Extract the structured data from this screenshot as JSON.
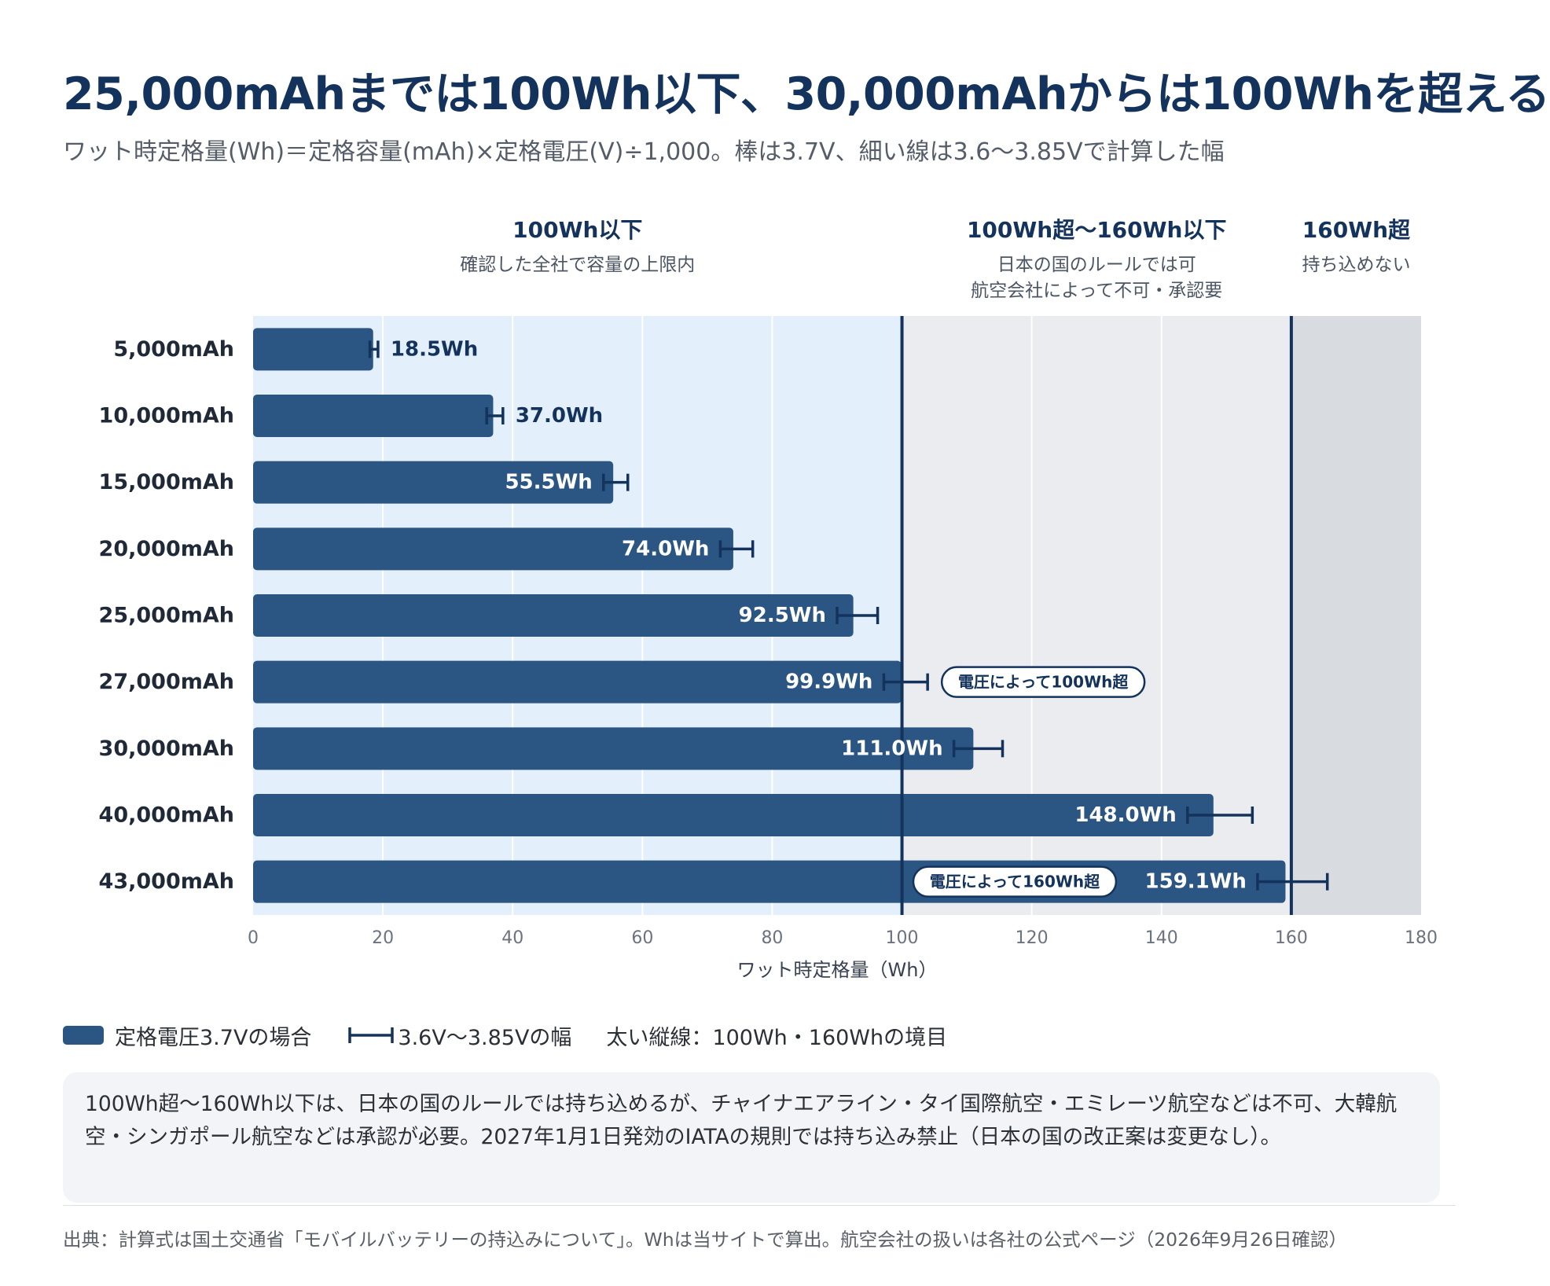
{
  "title": "25,000mAhまでは100Wh以下、30,000mAhからは100Whを超える",
  "subtitle": "ワット時定格量(Wh)＝定格容量(mAh)×定格電圧(V)÷1,000。棒は3.7V、細い線は3.6〜3.85Vで計算した幅",
  "chart_data": {
    "type": "bar",
    "orientation": "horizontal",
    "categories": [
      "5,000mAh",
      "10,000mAh",
      "15,000mAh",
      "20,000mAh",
      "25,000mAh",
      "27,000mAh",
      "30,000mAh",
      "40,000mAh",
      "43,000mAh"
    ],
    "values": [
      18.5,
      37.0,
      55.5,
      74.0,
      92.5,
      99.9,
      111.0,
      148.0,
      159.1
    ],
    "value_labels": [
      "18.5Wh",
      "37.0Wh",
      "55.5Wh",
      "74.0Wh",
      "92.5Wh",
      "99.9Wh",
      "111.0Wh",
      "148.0Wh",
      "159.1Wh"
    ],
    "error_ranges": [
      [
        18.0,
        19.25
      ],
      [
        36.0,
        38.5
      ],
      [
        54.0,
        57.75
      ],
      [
        72.0,
        77.0
      ],
      [
        90.0,
        96.25
      ],
      [
        97.2,
        103.95
      ],
      [
        108.0,
        115.5
      ],
      [
        144.0,
        154.0
      ],
      [
        154.8,
        165.55
      ]
    ],
    "xlabel": "ワット時定格量（Wh）",
    "ylabel": "",
    "xlim": [
      0,
      180
    ],
    "xticks": [
      0,
      20,
      40,
      60,
      80,
      100,
      120,
      140,
      160,
      180
    ],
    "grid": true,
    "thresholds": [
      100,
      160
    ],
    "zones": [
      {
        "range": [
          0,
          100
        ],
        "title": "100Wh以下",
        "subtitle_lines": [
          "確認した全社で容量の上限内"
        ],
        "color": "#e3effa"
      },
      {
        "range": [
          100,
          160
        ],
        "title": "100Wh超〜160Wh以下",
        "subtitle_lines": [
          "日本の国のルールでは可",
          "航空会社によって不可・承認要"
        ],
        "color": "#eaecef"
      },
      {
        "range": [
          160,
          180
        ],
        "title": "160Wh超",
        "subtitle_lines": [
          "持ち込めない"
        ],
        "color": "#d8dbdf"
      }
    ],
    "callouts": [
      {
        "row": 5,
        "text": "電圧によって100Wh超",
        "placement": "after-error-bar"
      },
      {
        "row": 8,
        "text": "電圧によって160Wh超",
        "placement": "inside-bar-before-label"
      }
    ],
    "colors": {
      "bar": "#2b5582",
      "dark": "#14335c",
      "grid": "#ffffff",
      "tick": "#6b7280"
    }
  },
  "legend": {
    "bar_label": "定格電圧3.7Vの場合",
    "error_label": "3.6V〜3.85Vの幅",
    "lines_label": "太い縦線：100Wh・160Whの境目"
  },
  "note": "100Wh超〜160Wh以下は、日本の国のルールでは持ち込めるが、チャイナエアライン・タイ国際航空・エミレーツ航空などは不可、大韓航空・シンガポール航空などは承認が必要。2027年1月1日発効のIATAの規則では持ち込み禁止（日本の国の改正案は変更なし）。",
  "source": "出典：計算式は国土交通省「モバイルバッテリーの持込みについて」。Whは当サイトで算出。航空会社の扱いは各社の公式ページ（2026年9月26日確認）"
}
